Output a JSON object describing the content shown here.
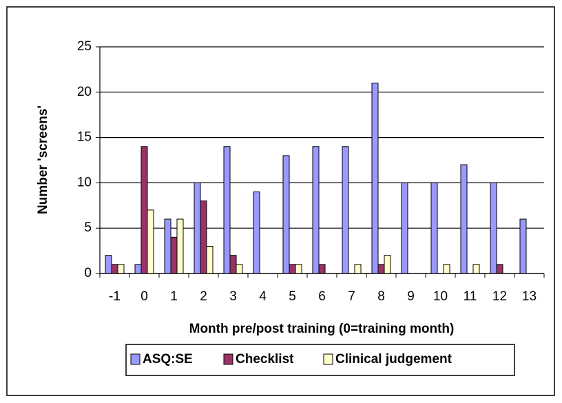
{
  "chart_data": {
    "type": "bar",
    "categories": [
      "-1",
      "0",
      "1",
      "2",
      "3",
      "4",
      "5",
      "6",
      "7",
      "8",
      "9",
      "10",
      "11",
      "12",
      "13"
    ],
    "series": [
      {
        "name": "ASQ:SE",
        "color": "#9999ff",
        "values": [
          2,
          1,
          6,
          10,
          14,
          9,
          13,
          14,
          14,
          21,
          10,
          10,
          12,
          10,
          6
        ]
      },
      {
        "name": "Checklist",
        "color": "#993366",
        "values": [
          1,
          14,
          4,
          8,
          2,
          0,
          1,
          1,
          0,
          1,
          0,
          0,
          0,
          1,
          0
        ]
      },
      {
        "name": "Clinical judgement",
        "color": "#ffffcc",
        "values": [
          1,
          7,
          6,
          3,
          1,
          0,
          1,
          0,
          1,
          2,
          0,
          1,
          1,
          0,
          0
        ]
      }
    ],
    "xlabel": "Month pre/post training (0=training month)",
    "ylabel": "Number 'screens'",
    "ylim": [
      0,
      25
    ],
    "yticks": [
      0,
      5,
      10,
      15,
      20,
      25
    ],
    "grid": true,
    "legend": "bottom"
  }
}
